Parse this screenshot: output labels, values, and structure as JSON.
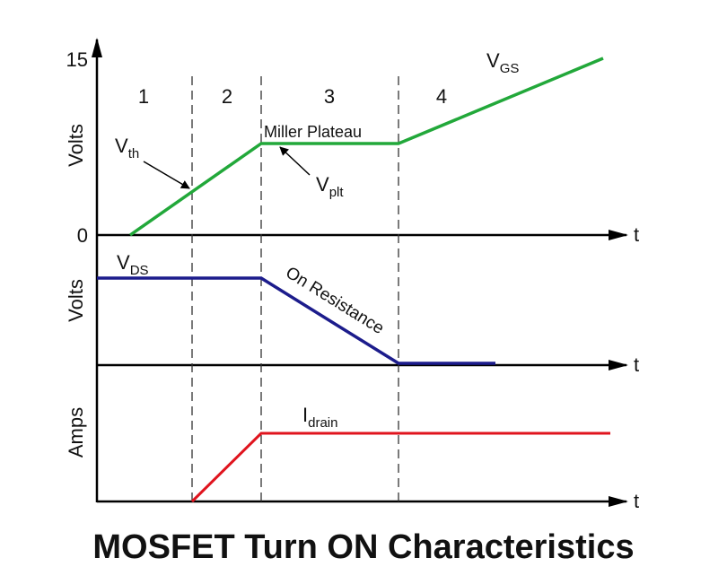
{
  "title": "MOSFET Turn ON Characteristics",
  "axes": {
    "top": {
      "ylabel": "Volts",
      "yticks": [
        "15",
        "0"
      ],
      "xlabel": "t"
    },
    "middle": {
      "ylabel": "Volts",
      "xlabel": "t"
    },
    "bottom": {
      "ylabel": "Amps",
      "xlabel": "t"
    }
  },
  "regions": [
    "1",
    "2",
    "3",
    "4"
  ],
  "annotations": {
    "vgs": {
      "main": "V",
      "sub": "GS"
    },
    "vth": {
      "main": "V",
      "sub": "th"
    },
    "vplt": {
      "main": "V",
      "sub": "plt"
    },
    "miller": "Miller Plateau",
    "vds": {
      "main": "V",
      "sub": "DS"
    },
    "on_resistance": "On Resistance",
    "idrain": {
      "main": "I",
      "sub": "drain"
    }
  }
}
